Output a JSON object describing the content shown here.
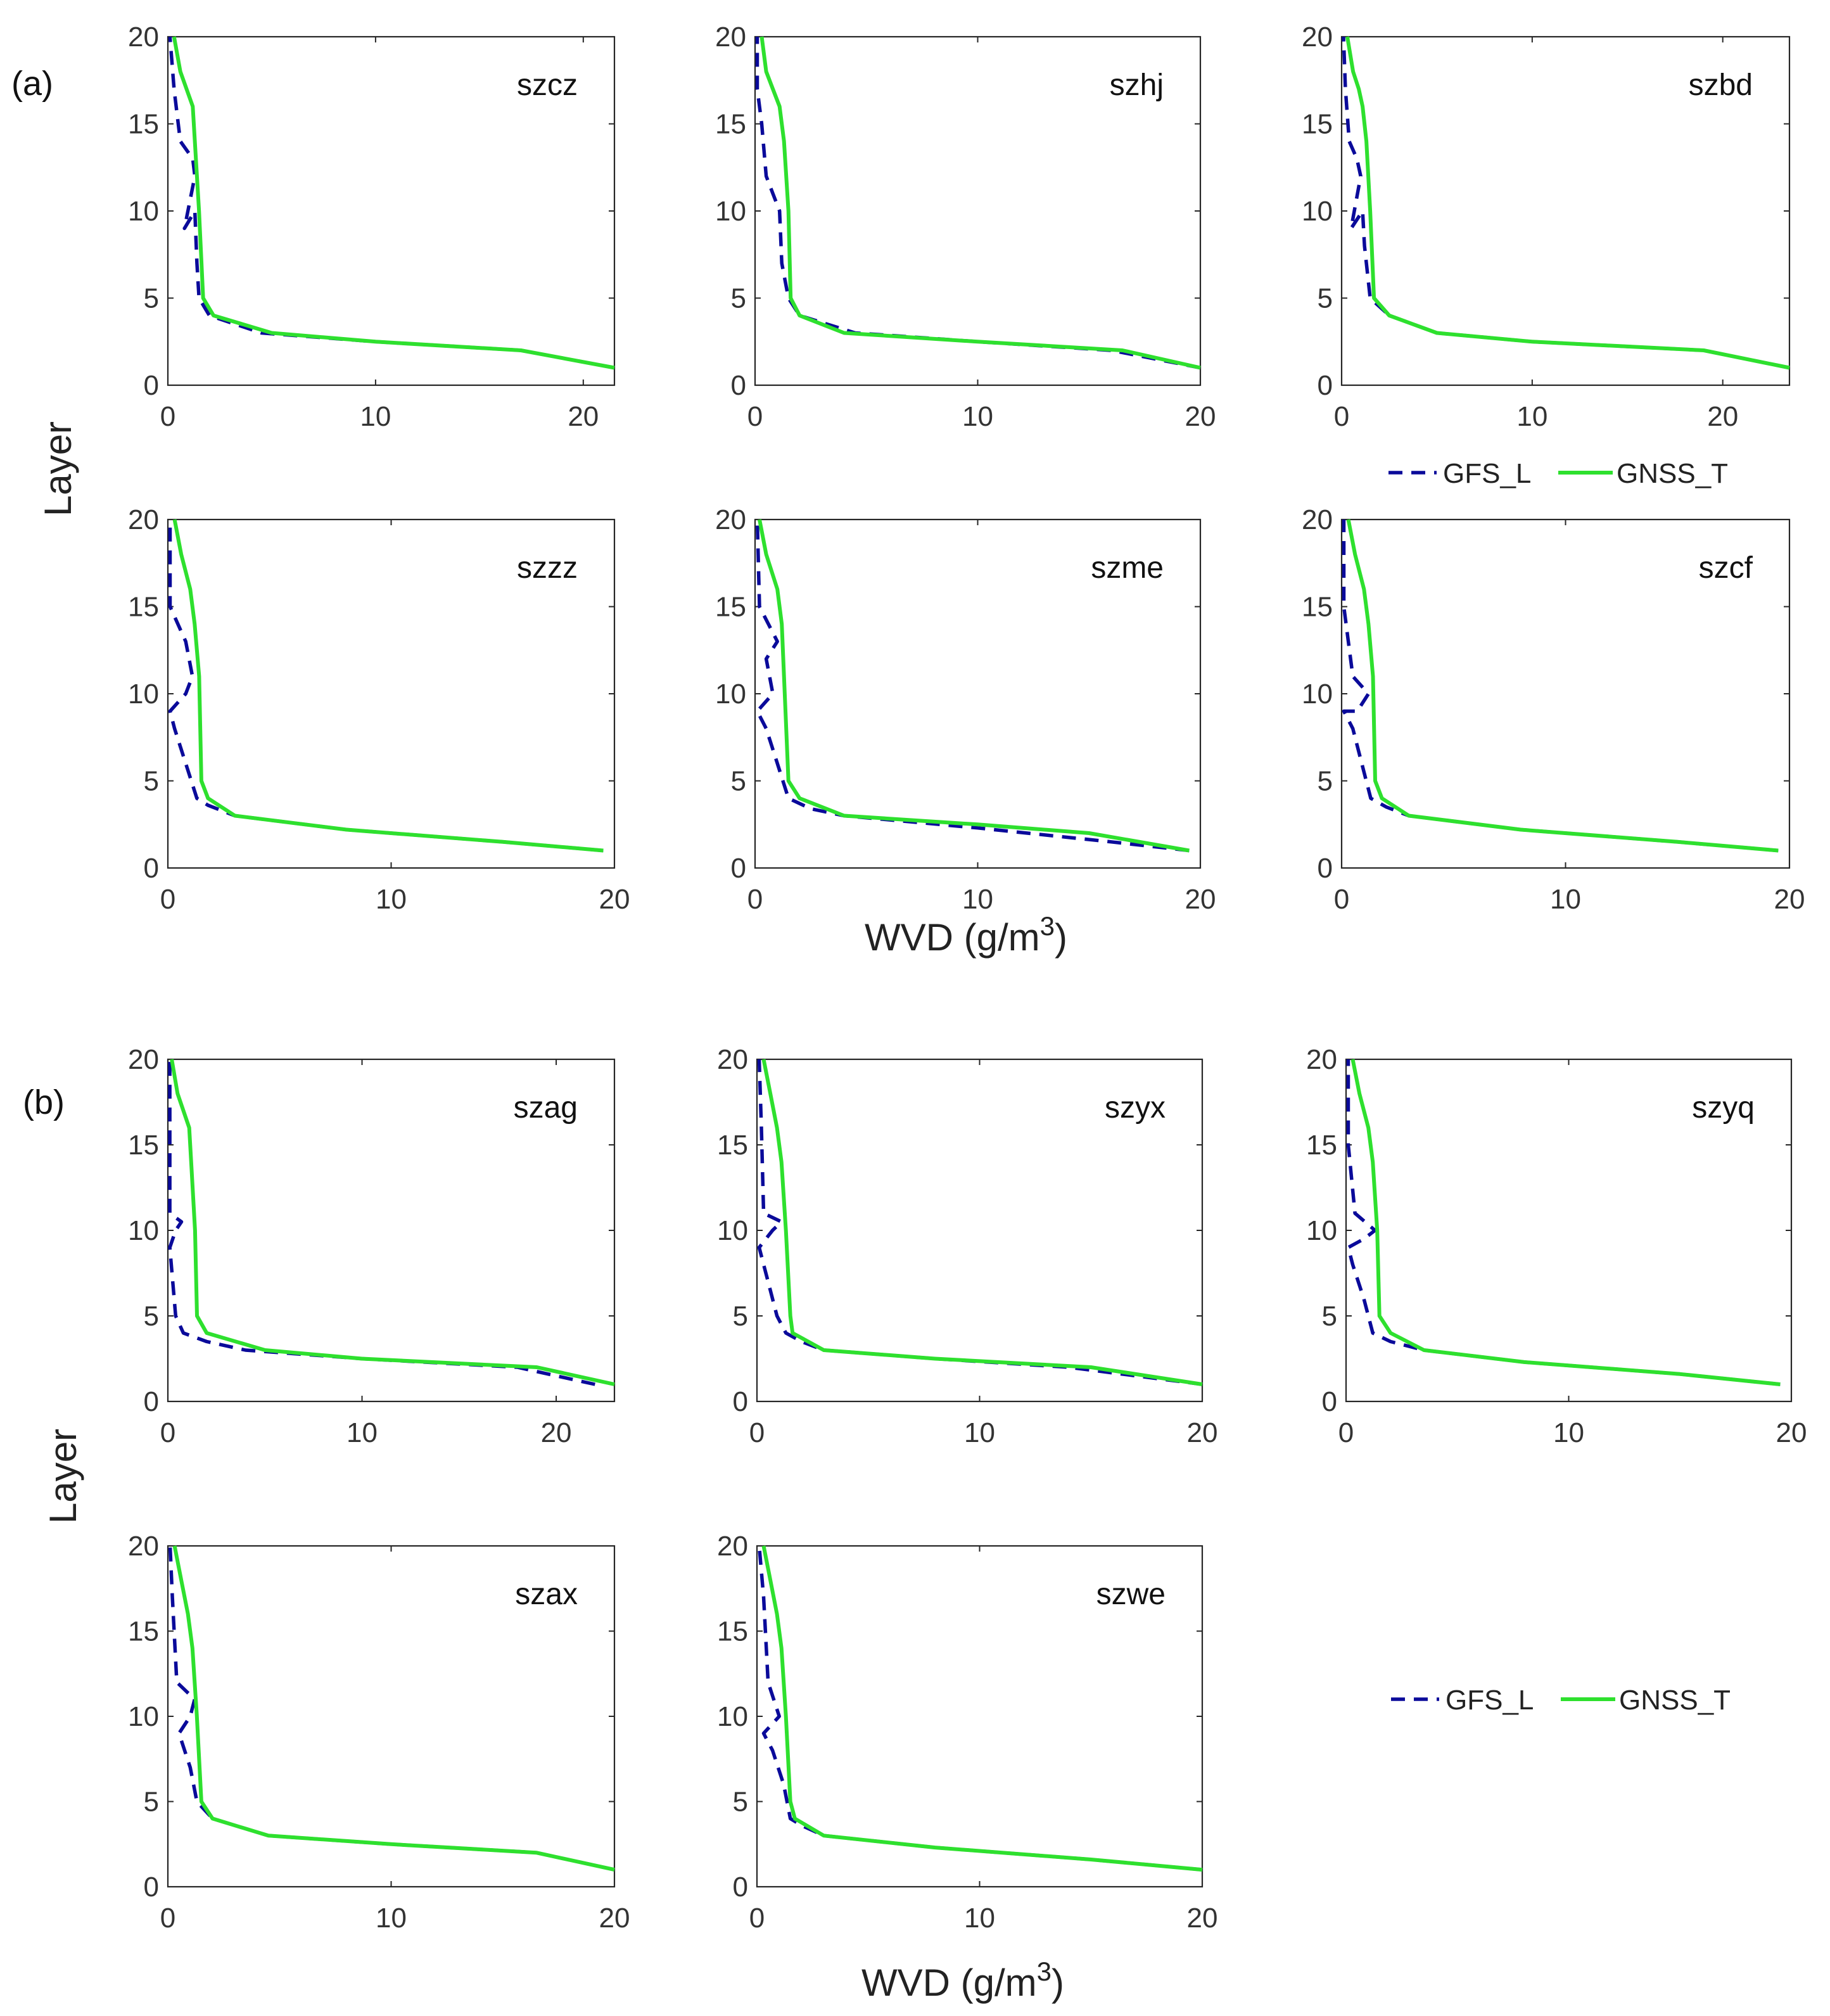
{
  "figure": {
    "panel_labels": [
      "(a)",
      "(b)"
    ],
    "ylabel": "Layer",
    "xlabel_main": "WVD (g/m",
    "xlabel_sup": "3",
    "xlabel_close": ")",
    "legend": {
      "gfs_label": "GFS_L",
      "gnss_label": "GNSS_T"
    },
    "colors": {
      "gnss": "#2ee02e",
      "gfs": "#0a0a9a",
      "frame": "#262626"
    }
  },
  "chart_data": [
    {
      "type": "line",
      "group": "(a)",
      "title": "szcz",
      "xlim": [
        0,
        21.5
      ],
      "ylim": [
        0,
        20
      ],
      "xticks": [
        0,
        10,
        20
      ],
      "yticks": [
        0,
        5,
        10,
        15,
        20
      ],
      "series": [
        {
          "name": "GFS_L",
          "x": [
            21.5,
            17,
            10,
            4.5,
            2,
            1.5,
            1.4,
            1.3,
            0.8,
            1.3,
            1.2,
            0.6,
            0.3,
            0.1
          ],
          "y": [
            1,
            2,
            2.5,
            3,
            4,
            5,
            7,
            10,
            9,
            12,
            13,
            14,
            17,
            20
          ]
        },
        {
          "name": "GNSS_T",
          "x": [
            21.5,
            17,
            10,
            5,
            2.2,
            1.7,
            1.5,
            1.3,
            1.2,
            0.9,
            0.6,
            0.3
          ],
          "y": [
            1,
            2,
            2.5,
            3,
            4,
            5,
            10,
            14,
            16,
            17,
            18,
            20
          ]
        }
      ]
    },
    {
      "type": "line",
      "group": "(a)",
      "title": "szhj",
      "xlim": [
        0,
        20
      ],
      "ylim": [
        0,
        20
      ],
      "xticks": [
        0,
        10,
        20
      ],
      "yticks": [
        0,
        5,
        10,
        15,
        20
      ],
      "series": [
        {
          "name": "GFS_L",
          "x": [
            20,
            16,
            10,
            4.5,
            2,
            1.5,
            1.2,
            1.1,
            0.8,
            0.5,
            0.3,
            0.1,
            0.1
          ],
          "y": [
            1,
            2,
            2.5,
            3,
            4,
            5,
            7,
            10,
            11,
            12,
            15,
            17,
            20
          ]
        },
        {
          "name": "GNSS_T",
          "x": [
            20,
            16.5,
            10,
            4,
            2,
            1.6,
            1.5,
            1.3,
            1.1,
            0.8,
            0.5,
            0.3
          ],
          "y": [
            1,
            2,
            2.5,
            3,
            4,
            5,
            10,
            14,
            16,
            17,
            18,
            20
          ]
        }
      ]
    },
    {
      "type": "line",
      "group": "(a)",
      "title": "szbd",
      "xlim": [
        0,
        23.5
      ],
      "ylim": [
        0,
        20
      ],
      "xticks": [
        0,
        10,
        20
      ],
      "yticks": [
        0,
        5,
        10,
        15,
        20
      ],
      "series": [
        {
          "name": "GFS_L",
          "x": [
            23.5,
            19,
            10,
            5,
            2.5,
            1.5,
            1.2,
            1.1,
            0.5,
            1.0,
            0.8,
            0.4,
            0.2,
            0.1
          ],
          "y": [
            1,
            2,
            2.5,
            3,
            4,
            5,
            8,
            10,
            9,
            12,
            13,
            14,
            17,
            20
          ]
        },
        {
          "name": "GNSS_T",
          "x": [
            23.5,
            19,
            10,
            5,
            2.5,
            1.7,
            1.5,
            1.3,
            1.1,
            0.9,
            0.6,
            0.3
          ],
          "y": [
            1,
            2,
            2.5,
            3,
            4,
            5,
            10,
            14,
            16,
            17,
            18,
            20
          ]
        }
      ]
    },
    {
      "type": "line",
      "group": "(a)",
      "title": "szzz",
      "xlim": [
        0,
        20
      ],
      "ylim": [
        0,
        20
      ],
      "xticks": [
        0,
        10,
        20
      ],
      "yticks": [
        0,
        5,
        10,
        15,
        20
      ],
      "series": [
        {
          "name": "GFS_L",
          "x": [
            19.5,
            15,
            8,
            3,
            1.8,
            1.3,
            0.8,
            0.3,
            0.1,
            0.8,
            1.1,
            0.8,
            0.1,
            0.1
          ],
          "y": [
            1,
            1.5,
            2.2,
            3,
            3.6,
            4,
            6,
            8,
            9,
            10,
            11,
            13,
            15,
            20
          ]
        },
        {
          "name": "GNSS_T",
          "x": [
            19.5,
            15,
            8,
            3,
            1.8,
            1.5,
            1.4,
            1.2,
            1.0,
            0.6,
            0.3
          ],
          "y": [
            1,
            1.5,
            2.2,
            3,
            4,
            5,
            11,
            14,
            16,
            18,
            20
          ]
        }
      ]
    },
    {
      "type": "line",
      "group": "(a)",
      "title": "szme",
      "xlim": [
        0,
        20
      ],
      "ylim": [
        0,
        20
      ],
      "xticks": [
        0,
        10,
        20
      ],
      "yticks": [
        0,
        5,
        10,
        15,
        20
      ],
      "series": [
        {
          "name": "GFS_L",
          "x": [
            19.5,
            16,
            10,
            4,
            2.5,
            1.5,
            1.0,
            0.5,
            0.1,
            0.8,
            0.5,
            1.0,
            0.2,
            0.1
          ],
          "y": [
            1,
            1.5,
            2.3,
            3,
            3.4,
            4,
            6,
            8,
            9,
            10,
            12,
            13,
            15,
            20
          ]
        },
        {
          "name": "GNSS_T",
          "x": [
            19.5,
            15,
            10,
            4,
            2,
            1.5,
            1.3,
            1.2,
            1.0,
            0.5,
            0.2
          ],
          "y": [
            1,
            2,
            2.5,
            3,
            4,
            5,
            11,
            14,
            16,
            18,
            20
          ]
        }
      ]
    },
    {
      "type": "line",
      "group": "(a)",
      "title": "szcf",
      "xlim": [
        0,
        20
      ],
      "ylim": [
        0,
        20
      ],
      "xticks": [
        0,
        10,
        20
      ],
      "yticks": [
        0,
        5,
        10,
        15,
        20
      ],
      "series": [
        {
          "name": "GFS_L",
          "x": [
            19.5,
            15,
            8,
            3,
            2,
            1.3,
            0.9,
            0.5,
            0.1,
            0.7,
            1.2,
            0.5,
            0.1,
            0.1
          ],
          "y": [
            1,
            1.5,
            2.2,
            3,
            3.5,
            4,
            6,
            8,
            9,
            9,
            10,
            11,
            15,
            20
          ]
        },
        {
          "name": "GNSS_T",
          "x": [
            19.5,
            15,
            8,
            3,
            1.8,
            1.5,
            1.4,
            1.2,
            1.0,
            0.6,
            0.3
          ],
          "y": [
            1,
            1.5,
            2.2,
            3,
            4,
            5,
            11,
            14,
            16,
            18,
            20
          ]
        }
      ]
    },
    {
      "type": "line",
      "group": "(b)",
      "title": "szag",
      "xlim": [
        0,
        23
      ],
      "ylim": [
        0,
        20
      ],
      "xticks": [
        0,
        10,
        20
      ],
      "yticks": [
        0,
        5,
        10,
        15,
        20
      ],
      "series": [
        {
          "name": "GFS_L",
          "x": [
            22,
            18,
            10,
            4,
            2,
            0.8,
            0.4,
            0.1,
            0.4,
            0.7,
            0.1,
            0.1
          ],
          "y": [
            1,
            2,
            2.5,
            3,
            3.5,
            4,
            5,
            9,
            10,
            10.5,
            11,
            20
          ]
        },
        {
          "name": "GNSS_T",
          "x": [
            23,
            19,
            10,
            5,
            2,
            1.5,
            1.4,
            1.2,
            1.1,
            0.8,
            0.5,
            0.2
          ],
          "y": [
            1,
            2,
            2.5,
            3,
            4,
            5,
            10,
            14,
            16,
            17,
            18,
            20
          ]
        }
      ]
    },
    {
      "type": "line",
      "group": "(b)",
      "title": "szyx",
      "xlim": [
        0,
        20
      ],
      "ylim": [
        0,
        20
      ],
      "xticks": [
        0,
        10,
        20
      ],
      "yticks": [
        0,
        5,
        10,
        15,
        20
      ],
      "series": [
        {
          "name": "GFS_L",
          "x": [
            20,
            14,
            8,
            3,
            2,
            1.3,
            0.9,
            0.5,
            0.1,
            0.7,
            1.1,
            0.3,
            0.2,
            0.1
          ],
          "y": [
            1,
            2,
            2.5,
            3,
            3.5,
            4,
            5,
            7,
            9,
            10,
            10.5,
            11,
            16,
            20
          ]
        },
        {
          "name": "GNSS_T",
          "x": [
            20,
            15,
            8,
            3,
            1.6,
            1.5,
            1.3,
            1.1,
            0.9,
            0.6,
            0.3
          ],
          "y": [
            1,
            2,
            2.5,
            3,
            4,
            5,
            10,
            14,
            16,
            18,
            20
          ]
        }
      ]
    },
    {
      "type": "line",
      "group": "(b)",
      "title": "szyq",
      "xlim": [
        0,
        20
      ],
      "ylim": [
        0,
        20
      ],
      "xticks": [
        0,
        10,
        20
      ],
      "yticks": [
        0,
        5,
        10,
        15,
        20
      ],
      "series": [
        {
          "name": "GFS_L",
          "x": [
            19.5,
            15,
            8,
            3.5,
            2,
            1.2,
            0.8,
            0.3,
            0.1,
            0.8,
            1.3,
            0.4,
            0.1,
            0.1
          ],
          "y": [
            1,
            1.6,
            2.3,
            3,
            3.5,
            4,
            6,
            8,
            9,
            9.5,
            10,
            11,
            15,
            20
          ]
        },
        {
          "name": "GNSS_T",
          "x": [
            19.5,
            15,
            8,
            3.5,
            2,
            1.5,
            1.4,
            1.2,
            1.0,
            0.6,
            0.3
          ],
          "y": [
            1,
            1.6,
            2.3,
            3,
            4,
            5,
            10,
            14,
            16,
            18,
            20
          ]
        }
      ]
    },
    {
      "type": "line",
      "group": "(b)",
      "title": "szax",
      "xlim": [
        0,
        20
      ],
      "ylim": [
        0,
        20
      ],
      "xticks": [
        0,
        10,
        20
      ],
      "yticks": [
        0,
        5,
        10,
        15,
        20
      ],
      "series": [
        {
          "name": "GFS_L",
          "x": [
            20,
            16.5,
            10,
            4.5,
            2,
            1.3,
            1.0,
            0.5,
            1.0,
            1.2,
            0.4,
            0.2,
            0.1
          ],
          "y": [
            1,
            2,
            2.5,
            3,
            4,
            5,
            7,
            9,
            10,
            11,
            12,
            17,
            20
          ]
        },
        {
          "name": "GNSS_T",
          "x": [
            20,
            16.5,
            10,
            4.5,
            2,
            1.5,
            1.3,
            1.1,
            0.9,
            0.6,
            0.3
          ],
          "y": [
            1,
            2,
            2.5,
            3,
            4,
            5,
            10,
            14,
            16,
            18,
            20
          ]
        }
      ]
    },
    {
      "type": "line",
      "group": "(b)",
      "title": "szwe",
      "xlim": [
        0,
        20
      ],
      "ylim": [
        0,
        20
      ],
      "xticks": [
        0,
        10,
        20
      ],
      "yticks": [
        0,
        5,
        10,
        15,
        20
      ],
      "series": [
        {
          "name": "GFS_L",
          "x": [
            20,
            15,
            8,
            3,
            2,
            1.5,
            1.2,
            0.7,
            0.3,
            1.0,
            0.5,
            0.3,
            0.1
          ],
          "y": [
            1,
            1.6,
            2.3,
            3,
            3.6,
            4,
            6,
            8,
            9,
            10,
            12,
            17,
            20
          ]
        },
        {
          "name": "GNSS_T",
          "x": [
            20,
            15,
            8,
            3,
            1.7,
            1.5,
            1.3,
            1.1,
            0.9,
            0.6,
            0.3
          ],
          "y": [
            1,
            1.6,
            2.3,
            3,
            4,
            5,
            10,
            14,
            16,
            18,
            20
          ]
        }
      ]
    }
  ]
}
